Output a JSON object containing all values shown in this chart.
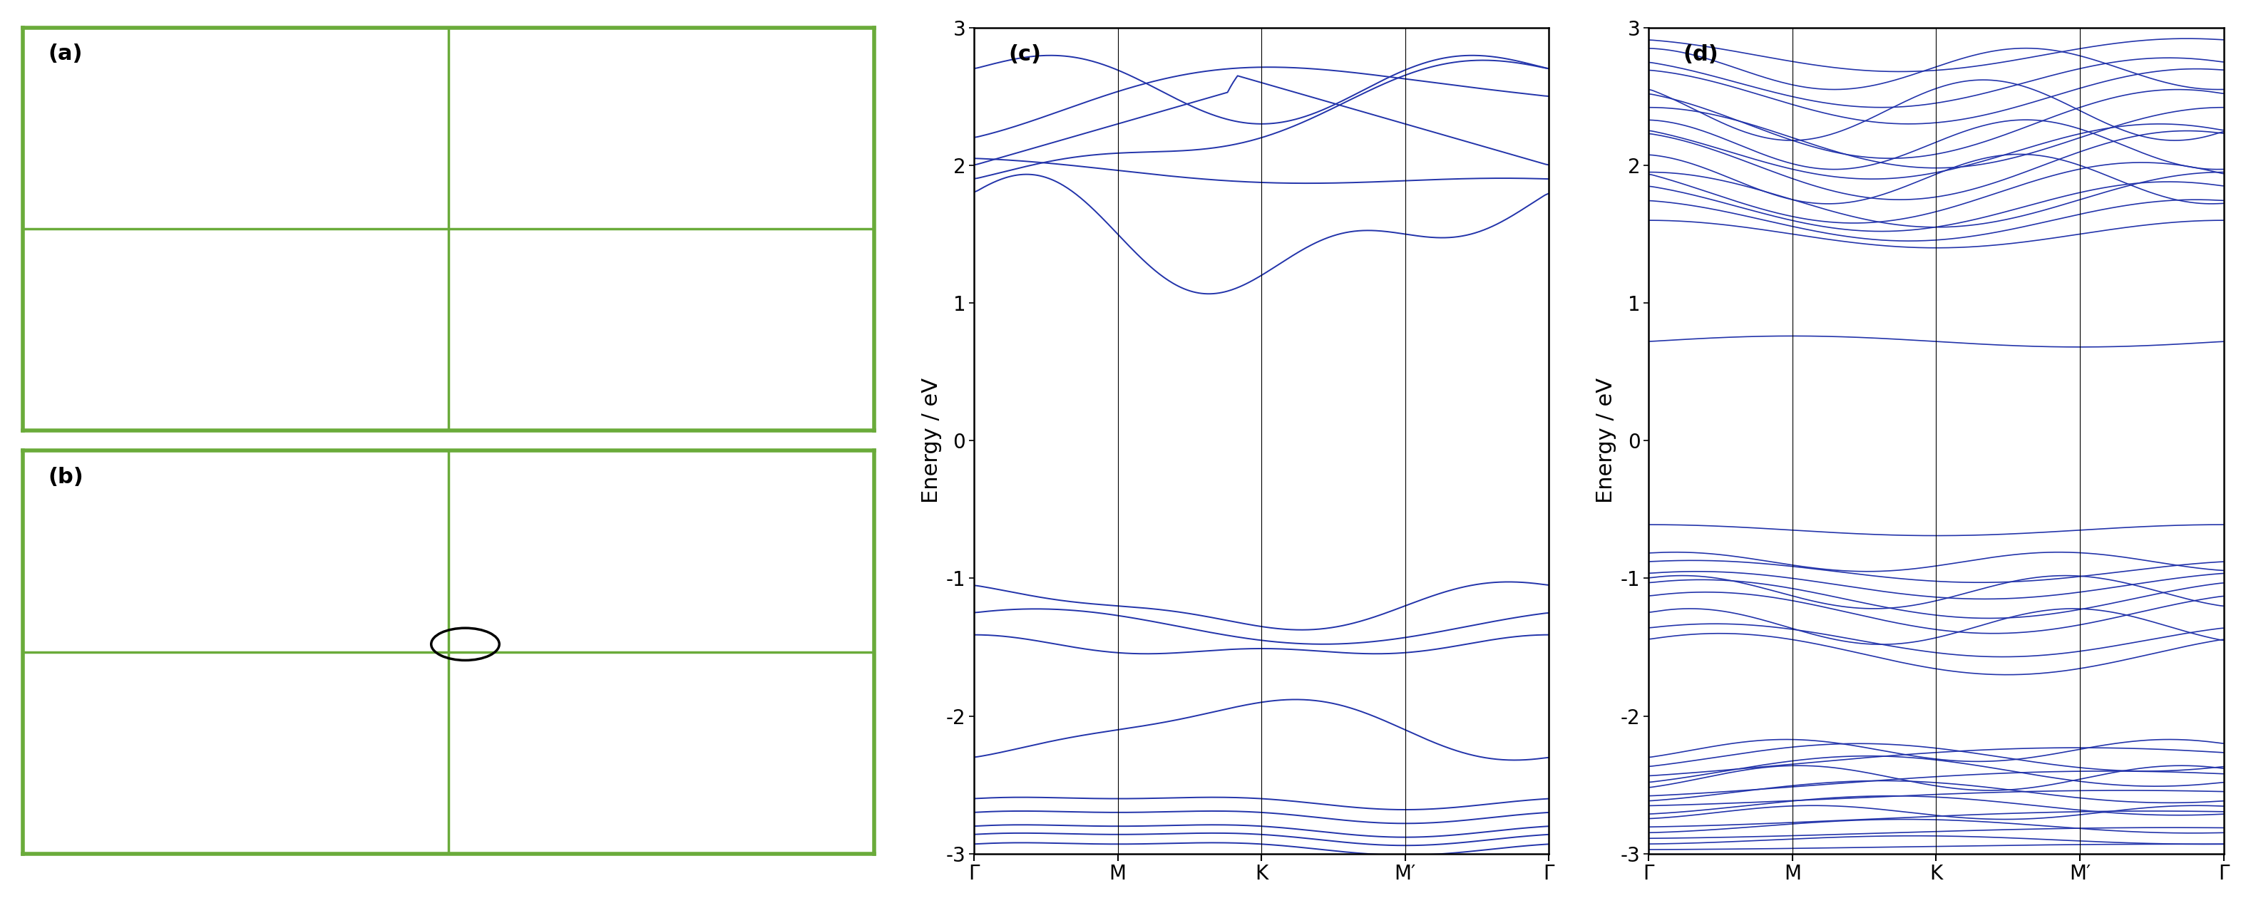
{
  "band_color": "#2233aa",
  "line_width": 1.4,
  "ylim": [
    -3,
    3
  ],
  "yticks": [
    -3,
    -2,
    -1,
    0,
    1,
    2,
    3
  ],
  "xlabel_kpoints": [
    "Γ",
    "M",
    "K",
    "M′",
    "Γ"
  ],
  "ylabel": "Energy / eV",
  "panel_c_label": "(c)",
  "panel_d_label": "(d)",
  "panel_a_label": "(a)",
  "panel_b_label": "(b)",
  "bg_color": "#ffffff",
  "font_size_label": 22,
  "font_size_tick": 20,
  "n_kpoints": 100
}
